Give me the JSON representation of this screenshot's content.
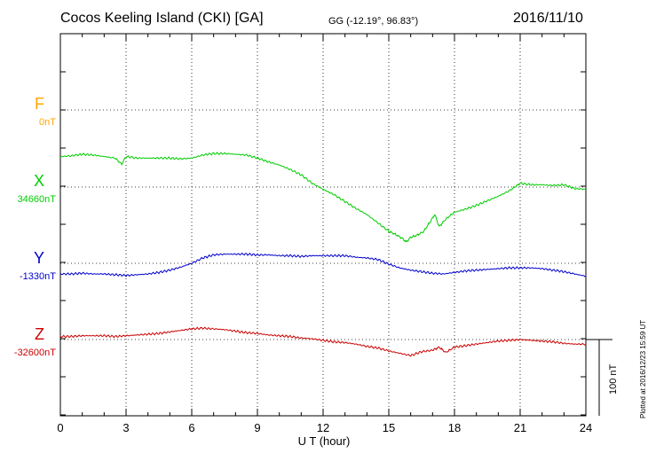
{
  "header": {
    "station": "Cocos Keeling Island (CKI)  [GA]",
    "coords": "GG (-12.19°,  96.83°)",
    "date": "2016/11/10"
  },
  "components": {
    "F": {
      "letter": "F",
      "base": "0nT",
      "color": "#FFA500"
    },
    "X": {
      "letter": "X",
      "base": "34660nT",
      "color": "#00CC00"
    },
    "Y": {
      "letter": "Y",
      "base": "-1330nT",
      "color": "#0000CC"
    },
    "Z": {
      "letter": "Z",
      "base": "-32600nT",
      "color": "#CC0000"
    }
  },
  "axis": {
    "xlabel": "U T (hour)",
    "ticks": [
      "0",
      "3",
      "6",
      "9",
      "12",
      "15",
      "18",
      "21",
      "24"
    ]
  },
  "scale_bar": {
    "label": "100 nT"
  },
  "footer": {
    "plotted": "Plotted at 2016/12/23 15:59 UT"
  },
  "chart_data": {
    "type": "line",
    "title": "Cocos Keeling Island (CKI)  [GA]",
    "xlabel": "U T (hour)",
    "ylabel": "",
    "xlim": [
      0,
      24
    ],
    "x_ticks": [
      0,
      3,
      6,
      9,
      12,
      15,
      18,
      21,
      24
    ],
    "grid": true,
    "scale_nT": 100,
    "series": [
      {
        "name": "X",
        "baseline_nT": 34660,
        "color": "#00CC00",
        "x": [
          0,
          0.5,
          1,
          1.5,
          2,
          2.5,
          2.8,
          3,
          3.5,
          4,
          4.5,
          5,
          5.5,
          6,
          6.5,
          7,
          7.5,
          8,
          8.5,
          9,
          9.5,
          10,
          10.5,
          11,
          11.5,
          12,
          12.5,
          13,
          13.5,
          14,
          14.5,
          15,
          15.3,
          15.6,
          15.8,
          16,
          16.3,
          16.6,
          16.9,
          17.1,
          17.3,
          17.6,
          18,
          18.5,
          19,
          19.5,
          20,
          20.5,
          20.8,
          21,
          21.5,
          22,
          22.5,
          23,
          23.5,
          24
        ],
        "y": [
          40,
          41,
          43,
          42,
          40,
          38,
          30,
          40,
          38,
          38,
          38,
          38,
          37,
          38,
          42,
          44,
          44,
          43,
          42,
          38,
          33,
          29,
          23,
          16,
          5,
          -3,
          -10,
          -19,
          -28,
          -36,
          -47,
          -58,
          -62,
          -67,
          -72,
          -66,
          -63,
          -58,
          -45,
          -36,
          -52,
          -42,
          -33,
          -29,
          -24,
          -18,
          -12,
          -5,
          1,
          5,
          3,
          3,
          2,
          3,
          -2,
          -3
        ]
      },
      {
        "name": "Y",
        "baseline_nT": -1330,
        "color": "#0000CC",
        "x": [
          0,
          0.5,
          1,
          1.5,
          2,
          2.5,
          3,
          3.5,
          4,
          4.5,
          5,
          5.5,
          6,
          6.5,
          7,
          7.5,
          8,
          8.5,
          9,
          9.5,
          10,
          10.5,
          11,
          11.5,
          12,
          12.5,
          13,
          13.5,
          14,
          14.5,
          15,
          15.5,
          16,
          16.5,
          17,
          17.5,
          18,
          18.5,
          19,
          19.5,
          20,
          20.5,
          21,
          21.5,
          22,
          22.5,
          23,
          23.5,
          24
        ],
        "y": [
          -14,
          -14,
          -13,
          -14,
          -14,
          -15,
          -16,
          -15,
          -14,
          -12,
          -9,
          -5,
          0,
          7,
          11,
          12,
          12,
          12,
          11,
          11,
          10,
          10,
          9,
          10,
          10,
          10,
          10,
          8,
          7,
          5,
          -1,
          -6,
          -9,
          -11,
          -13,
          -14,
          -12,
          -10,
          -9,
          -8,
          -7,
          -6,
          -6,
          -6,
          -7,
          -9,
          -11,
          -14,
          -17
        ]
      },
      {
        "name": "Z",
        "baseline_nT": -32600,
        "color": "#CC0000",
        "x": [
          0,
          0.5,
          1,
          1.5,
          2,
          2.5,
          3,
          3.5,
          4,
          4.5,
          5,
          5.5,
          6,
          6.5,
          7,
          7.5,
          8,
          8.5,
          9,
          9.5,
          10,
          10.5,
          11,
          11.5,
          12,
          12.5,
          13,
          13.5,
          14,
          14.5,
          15,
          15.5,
          16,
          16.5,
          17,
          17.3,
          17.6,
          18,
          18.5,
          19,
          19.5,
          20,
          20.5,
          21,
          21.5,
          22,
          22.5,
          23,
          23.5,
          24
        ],
        "y": [
          4,
          4,
          5,
          5,
          5,
          4,
          5,
          6,
          7,
          8,
          10,
          12,
          14,
          15,
          14,
          13,
          11,
          9,
          8,
          6,
          5,
          4,
          2,
          1,
          -1,
          -3,
          -4,
          -6,
          -9,
          -11,
          -15,
          -18,
          -21,
          -16,
          -14,
          -10,
          -17,
          -10,
          -8,
          -6,
          -4,
          -2,
          -1,
          0,
          -1,
          -2,
          -3,
          -5,
          -6,
          -6
        ]
      }
    ]
  }
}
